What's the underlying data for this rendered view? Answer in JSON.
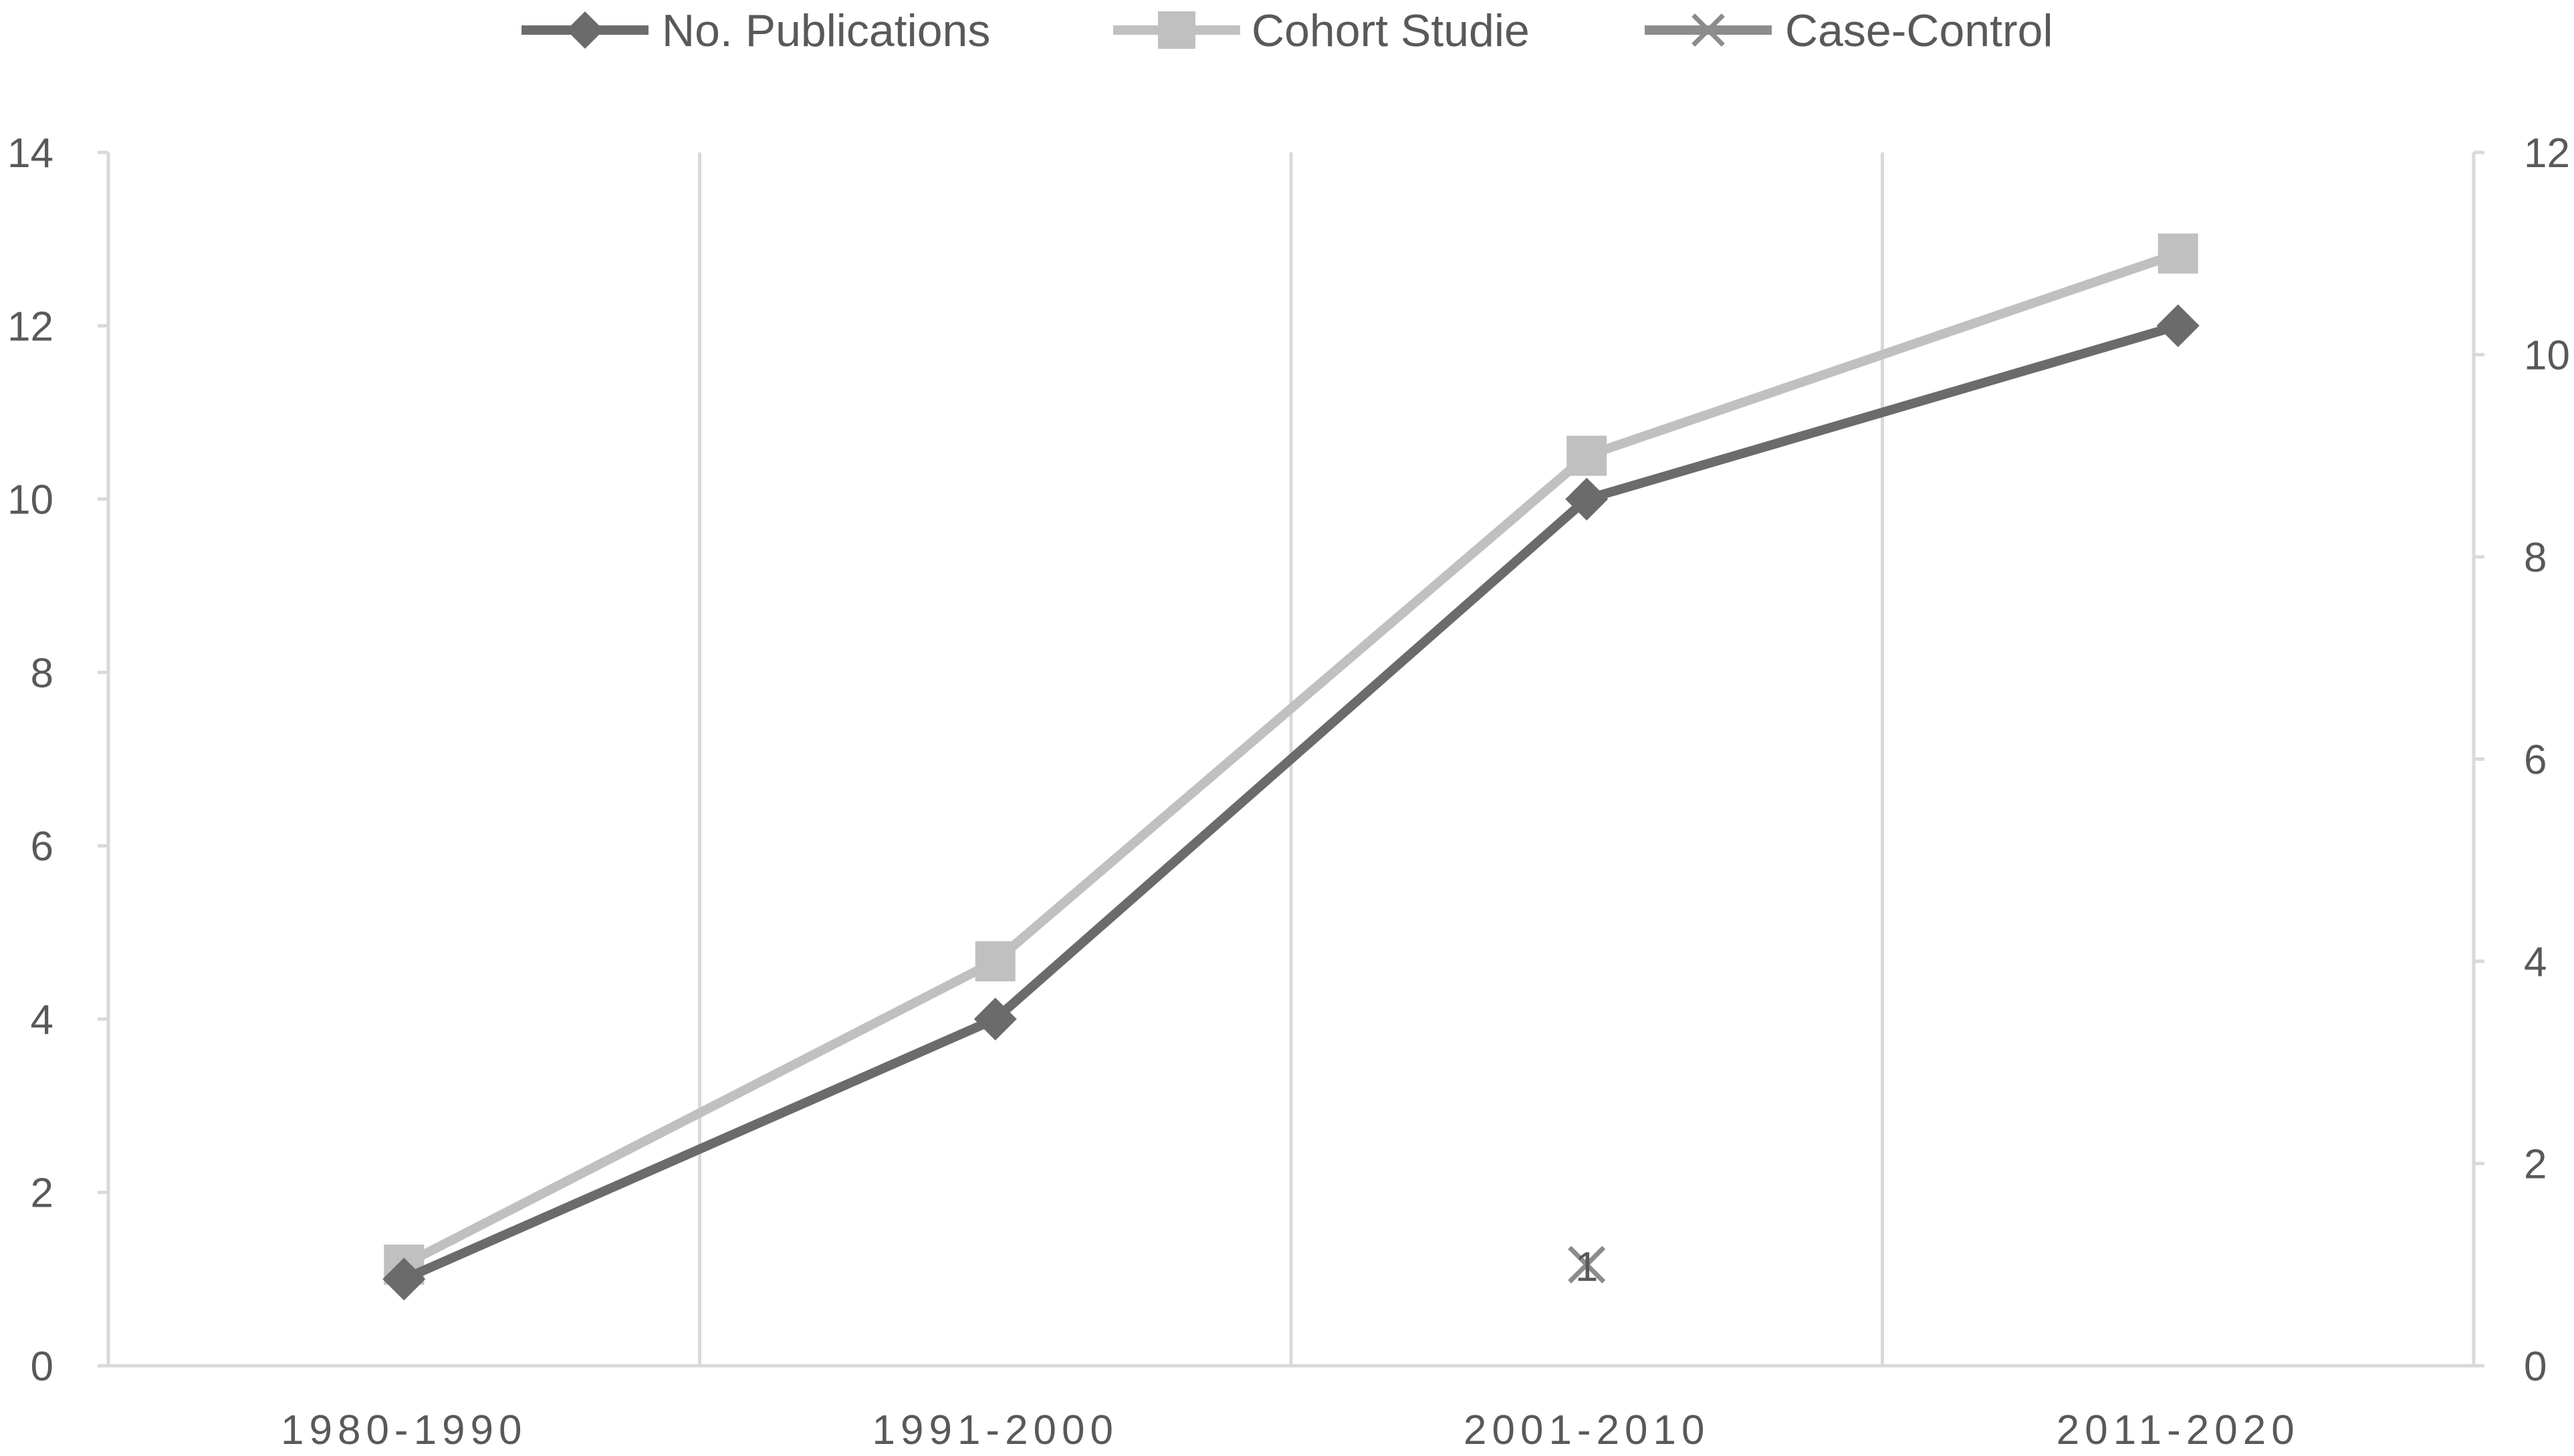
{
  "chart_data": {
    "type": "line",
    "title": "",
    "xlabel": "",
    "ylabel": "",
    "categories": [
      "1980-1990",
      "1991-2000",
      "2001-2010",
      "2011-2020"
    ],
    "y_left": {
      "min": 0,
      "max": 14,
      "step": 2,
      "ticks": [
        "0",
        "2",
        "4",
        "6",
        "8",
        "10",
        "12",
        "14"
      ]
    },
    "y_right": {
      "min": 0,
      "max": 12,
      "step": 2,
      "ticks": [
        "0",
        "2",
        "4",
        "6",
        "8",
        "10",
        "12"
      ]
    },
    "grid": "vertical category separators",
    "legend": "top-center",
    "series": [
      {
        "name": "No. Publications",
        "axis": "left",
        "marker": "diamond",
        "color": "#6b6b6b",
        "values": [
          1,
          4,
          10,
          12
        ]
      },
      {
        "name": "Cohort Studie",
        "axis": "right",
        "marker": "square",
        "color": "#c0c0c0",
        "values": [
          1,
          4,
          9,
          11
        ]
      },
      {
        "name": "Case-Control",
        "axis": "right",
        "marker": "x",
        "color": "#8c8c8c",
        "values": [
          null,
          null,
          1,
          null
        ]
      }
    ],
    "annotations": [
      {
        "text": "1",
        "series": "Case-Control",
        "category": "2001-2010"
      }
    ]
  }
}
